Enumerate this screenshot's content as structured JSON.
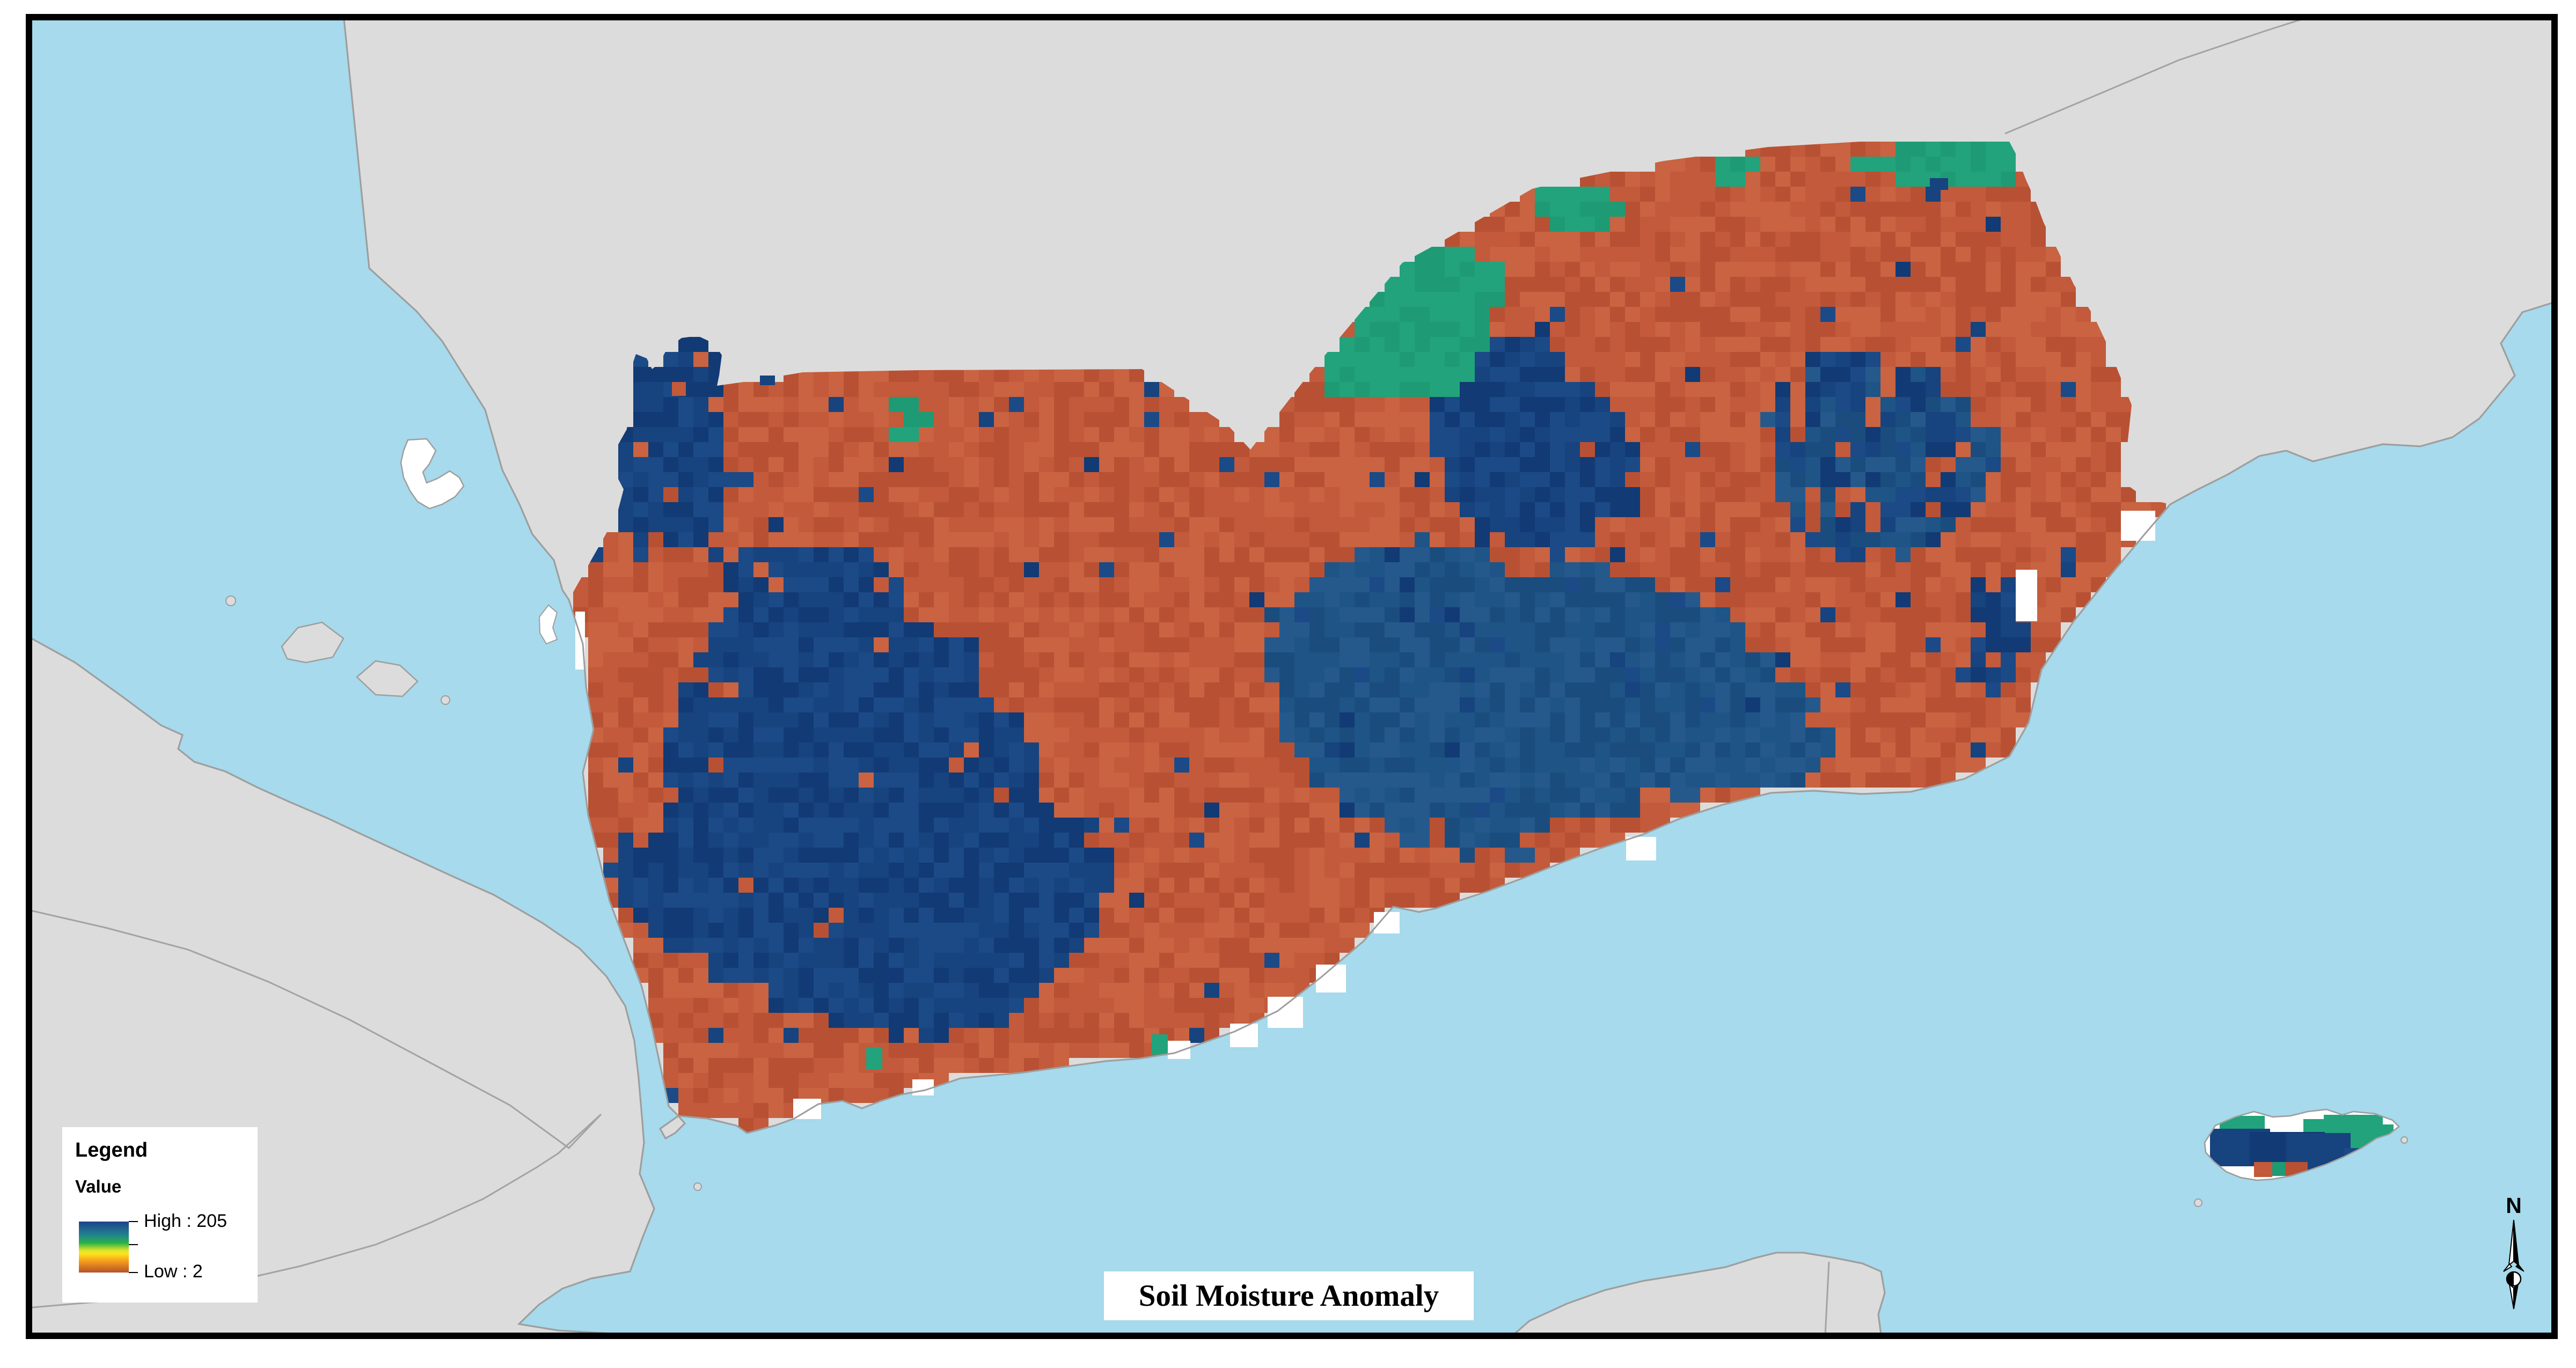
{
  "window": {
    "kind": "gis-map-layout"
  },
  "legend": {
    "title": "Legend",
    "subtitle": "Value",
    "high_label": "High : 205",
    "low_label": "Low : 2",
    "ramp": [
      [
        "0%",
        "#21418C"
      ],
      [
        "25%",
        "#1F7F90"
      ],
      [
        "42%",
        "#2BB14A"
      ],
      [
        "56%",
        "#D8E32A"
      ],
      [
        "63%",
        "#FBE51C"
      ],
      [
        "78%",
        "#F59C1C"
      ],
      [
        "100%",
        "#B5512C"
      ]
    ]
  },
  "title_box": {
    "text": "Soil Moisture Anomaly"
  },
  "north_arrow": {
    "label": "N"
  },
  "map": {
    "colors": {
      "page_bg": "#FFFFFF",
      "frame": "#000000",
      "sea": "#A6DAEC",
      "land": "#DCDCDC",
      "land_stroke": "#9E9E9E",
      "border_line": "#A3A3A3",
      "no_data": "#FFFFFF",
      "raster_orange": "#C25A3B",
      "raster_orange_dark": "#B85134",
      "raster_orange_light": "#C96341",
      "raster_navy": "#17437E",
      "raster_navy_dark": "#123A74",
      "raster_navy_light": "#1B4A87",
      "raster_steel": "#1E5486",
      "raster_steel_dark": "#1A4D7E",
      "raster_steel_light": "#25598C",
      "raster_green": "#22A37B",
      "raster_green_dark": "#1E9B74"
    },
    "raster_value_high": 205,
    "raster_value_low": 2
  }
}
